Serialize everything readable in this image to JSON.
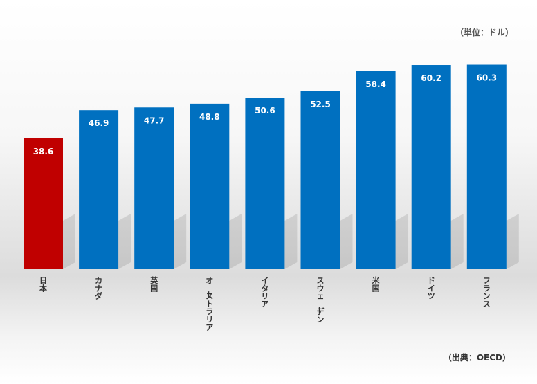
{
  "unit_note": "（単位：ドル）",
  "source_note": "（出典：OECD）",
  "colors": {
    "highlight": "#c00000",
    "bar": "#0070c0"
  },
  "chart_data": {
    "type": "bar",
    "categories": [
      "日本",
      "カナダ",
      "英国",
      "オーストラリア",
      "イタリア",
      "スウェーデン",
      "米国",
      "ドイツ",
      "フランス"
    ],
    "values": [
      38.6,
      46.9,
      47.7,
      48.8,
      50.6,
      52.5,
      58.4,
      60.2,
      60.3
    ],
    "highlight_category": "日本",
    "title": "",
    "xlabel": "",
    "ylabel": "",
    "ylim": [
      0,
      70
    ],
    "grid": false,
    "legend": "none"
  }
}
